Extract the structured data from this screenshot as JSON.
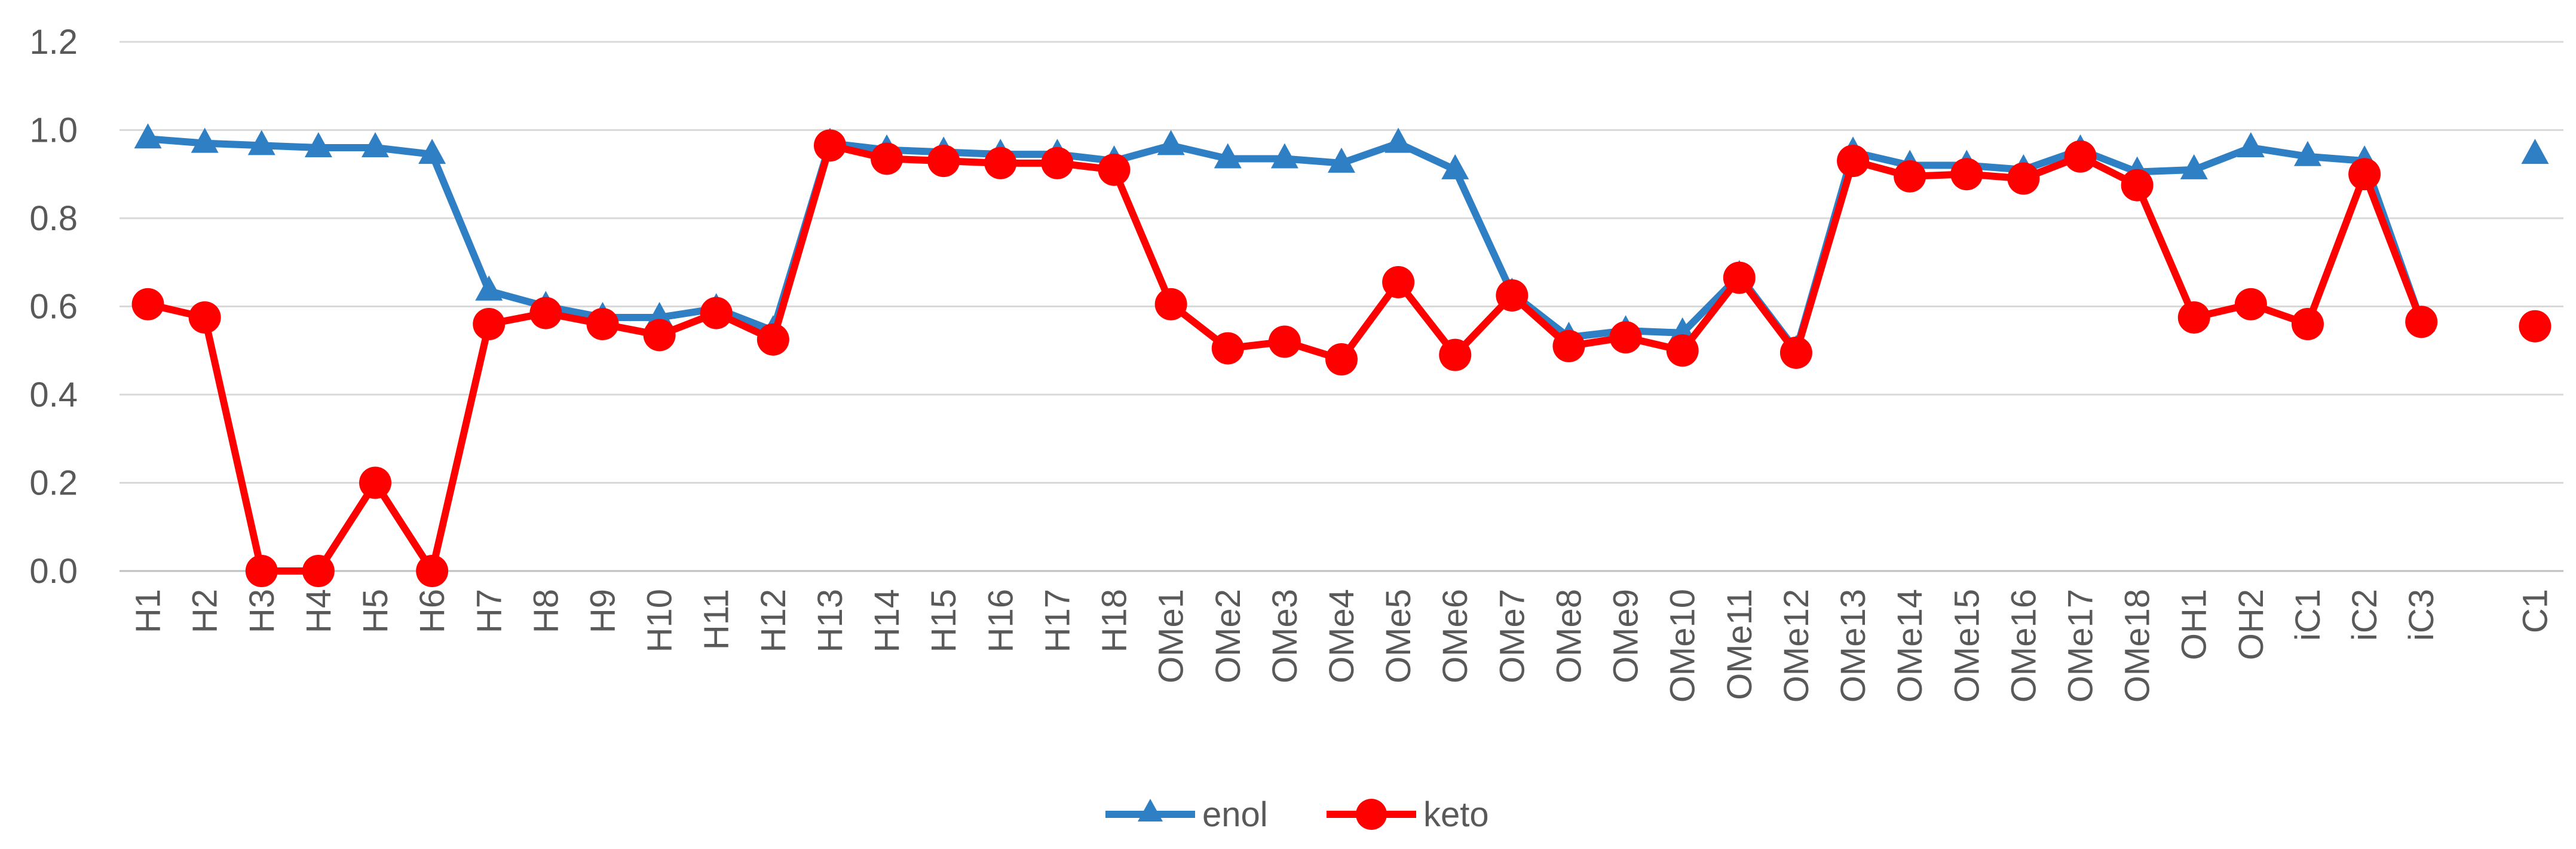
{
  "chart_data": {
    "type": "line",
    "categories": [
      "H1",
      "H2",
      "H3",
      "H4",
      "H5",
      "H6",
      "H7",
      "H8",
      "H9",
      "H10",
      "H11",
      "H12",
      "H13",
      "H14",
      "H15",
      "H16",
      "H17",
      "H18",
      "OMe1",
      "OMe2",
      "OMe3",
      "OMe4",
      "OMe5",
      "OMe6",
      "OMe7",
      "OMe8",
      "OMe9",
      "OMe10",
      "OMe11",
      "OMe12",
      "OMe13",
      "OMe14",
      "OMe15",
      "OMe16",
      "OMe17",
      "OMe18",
      "OH1",
      "OH2",
      "iC1",
      "iC2",
      "iC3",
      "",
      "C1"
    ],
    "series": [
      {
        "name": "enol",
        "color": "#2e7fc4",
        "marker": "triangle",
        "values": [
          0.98,
          0.97,
          0.965,
          0.96,
          0.96,
          0.945,
          0.635,
          0.6,
          0.575,
          0.575,
          0.595,
          0.545,
          0.97,
          0.955,
          0.95,
          0.945,
          0.945,
          0.93,
          0.965,
          0.935,
          0.935,
          0.925,
          0.97,
          0.91,
          0.63,
          0.53,
          0.545,
          0.54,
          0.67,
          0.5,
          0.95,
          0.92,
          0.92,
          0.91,
          0.955,
          0.905,
          0.91,
          0.96,
          0.94,
          0.93,
          0.565,
          null,
          0.945
        ]
      },
      {
        "name": "keto",
        "color": "#ff0000",
        "marker": "circle",
        "values": [
          0.605,
          0.575,
          0.0,
          0.0,
          0.2,
          0.0,
          0.56,
          0.585,
          0.56,
          0.535,
          0.585,
          0.525,
          0.965,
          0.935,
          0.93,
          0.925,
          0.925,
          0.91,
          0.605,
          0.505,
          0.52,
          0.48,
          0.655,
          0.49,
          0.625,
          0.51,
          0.53,
          0.5,
          0.665,
          0.495,
          0.93,
          0.895,
          0.9,
          0.89,
          0.94,
          0.875,
          0.575,
          0.605,
          0.56,
          0.9,
          0.565,
          null,
          0.555
        ]
      }
    ],
    "yticks": [
      "0.0",
      "0.2",
      "0.4",
      "0.6",
      "0.8",
      "1.0",
      "1.2"
    ],
    "ylim": [
      0,
      1.2
    ],
    "grid": true,
    "legend_position": "bottom"
  }
}
